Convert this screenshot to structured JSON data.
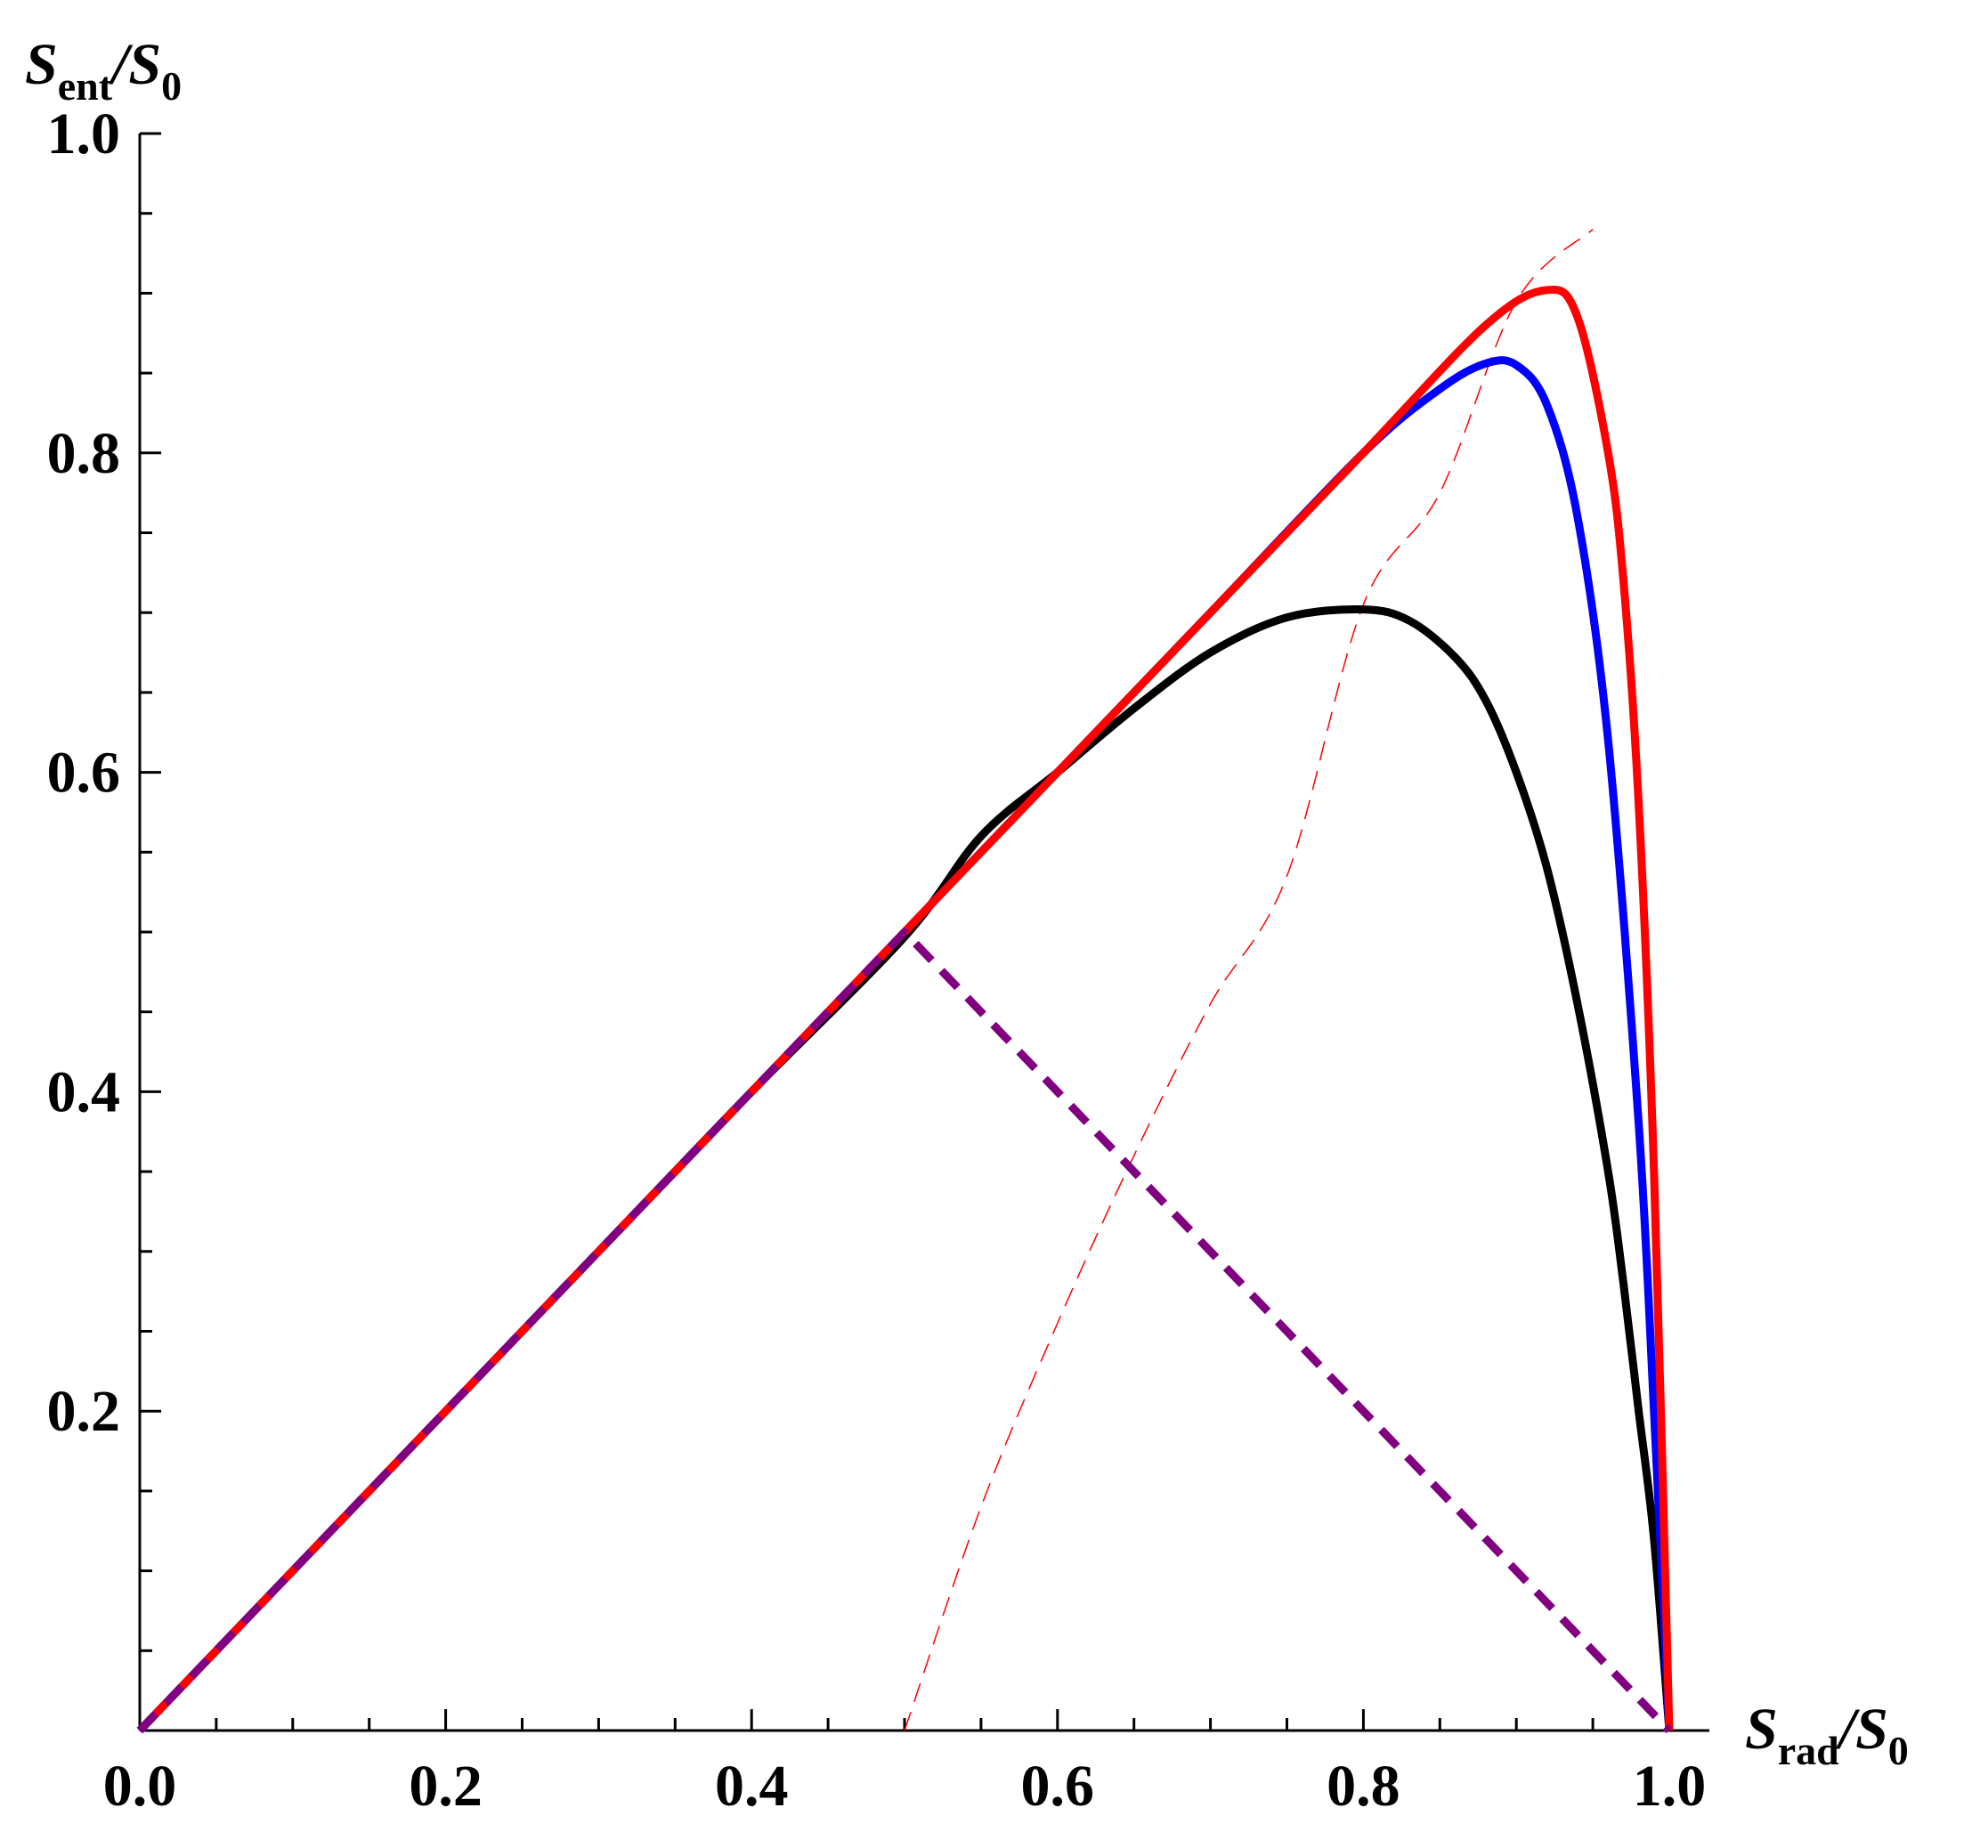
{
  "chart_data": {
    "type": "line",
    "xlabel": {
      "symbol": "S",
      "sub": "rad",
      "sep": "/",
      "den_symbol": "S",
      "den_sub": "0"
    },
    "ylabel": {
      "symbol": "S",
      "sub": "ent",
      "sep": "/",
      "den_symbol": "S",
      "den_sub": "0"
    },
    "xlim": [
      0,
      1.0
    ],
    "ylim": [
      0,
      1.0
    ],
    "x_ticks": [
      "0.0",
      "0.2",
      "0.4",
      "0.6",
      "0.8",
      "1.0"
    ],
    "y_ticks": [
      "0.2",
      "0.4",
      "0.6",
      "0.8",
      "1.0"
    ],
    "grid": false,
    "series": [
      {
        "color": "#000000",
        "style": "solid",
        "x": [
          0,
          0.1,
          0.2,
          0.3,
          0.4,
          0.5,
          0.55,
          0.6,
          0.65,
          0.7,
          0.75,
          0.8,
          0.83,
          0.86,
          0.88,
          0.9,
          0.92,
          0.94,
          0.96,
          0.97,
          0.98,
          0.99,
          1.0
        ],
        "y": [
          0,
          0.1,
          0.2,
          0.3,
          0.4,
          0.497,
          0.56,
          0.6,
          0.64,
          0.675,
          0.697,
          0.702,
          0.695,
          0.672,
          0.645,
          0.6,
          0.54,
          0.455,
          0.35,
          0.28,
          0.2,
          0.12,
          0.0
        ]
      },
      {
        "color": "#0000ff",
        "style": "solid",
        "x": [
          0,
          0.1,
          0.2,
          0.3,
          0.4,
          0.5,
          0.6,
          0.7,
          0.8,
          0.85,
          0.88,
          0.9,
          0.92,
          0.94,
          0.96,
          0.98,
          0.99,
          1.0
        ],
        "y": [
          0,
          0.1,
          0.2,
          0.3,
          0.4,
          0.5,
          0.6,
          0.7,
          0.8,
          0.84,
          0.856,
          0.855,
          0.83,
          0.76,
          0.62,
          0.38,
          0.2,
          0.0
        ]
      },
      {
        "color": "#ff0000",
        "style": "solid",
        "x": [
          0,
          0.1,
          0.2,
          0.3,
          0.4,
          0.5,
          0.6,
          0.7,
          0.8,
          0.88,
          0.92,
          0.94,
          0.96,
          0.97,
          0.98,
          0.99,
          1.0
        ],
        "y": [
          0,
          0.1,
          0.2,
          0.3,
          0.4,
          0.5,
          0.6,
          0.7,
          0.8,
          0.88,
          0.902,
          0.885,
          0.8,
          0.72,
          0.58,
          0.35,
          0.0
        ]
      },
      {
        "color": "#ff0000",
        "style": "thin-dashed",
        "x": [
          0.5,
          0.55,
          0.6,
          0.65,
          0.7,
          0.75,
          0.8,
          0.85,
          0.9,
          0.95
        ],
        "y": [
          0.0,
          0.14,
          0.255,
          0.36,
          0.455,
          0.535,
          0.705,
          0.775,
          0.895,
          0.94
        ]
      },
      {
        "color": "#800080",
        "style": "thick-dashed",
        "x": [
          0,
          0.5,
          1.0
        ],
        "y": [
          0,
          0.5,
          0.0
        ]
      }
    ]
  }
}
